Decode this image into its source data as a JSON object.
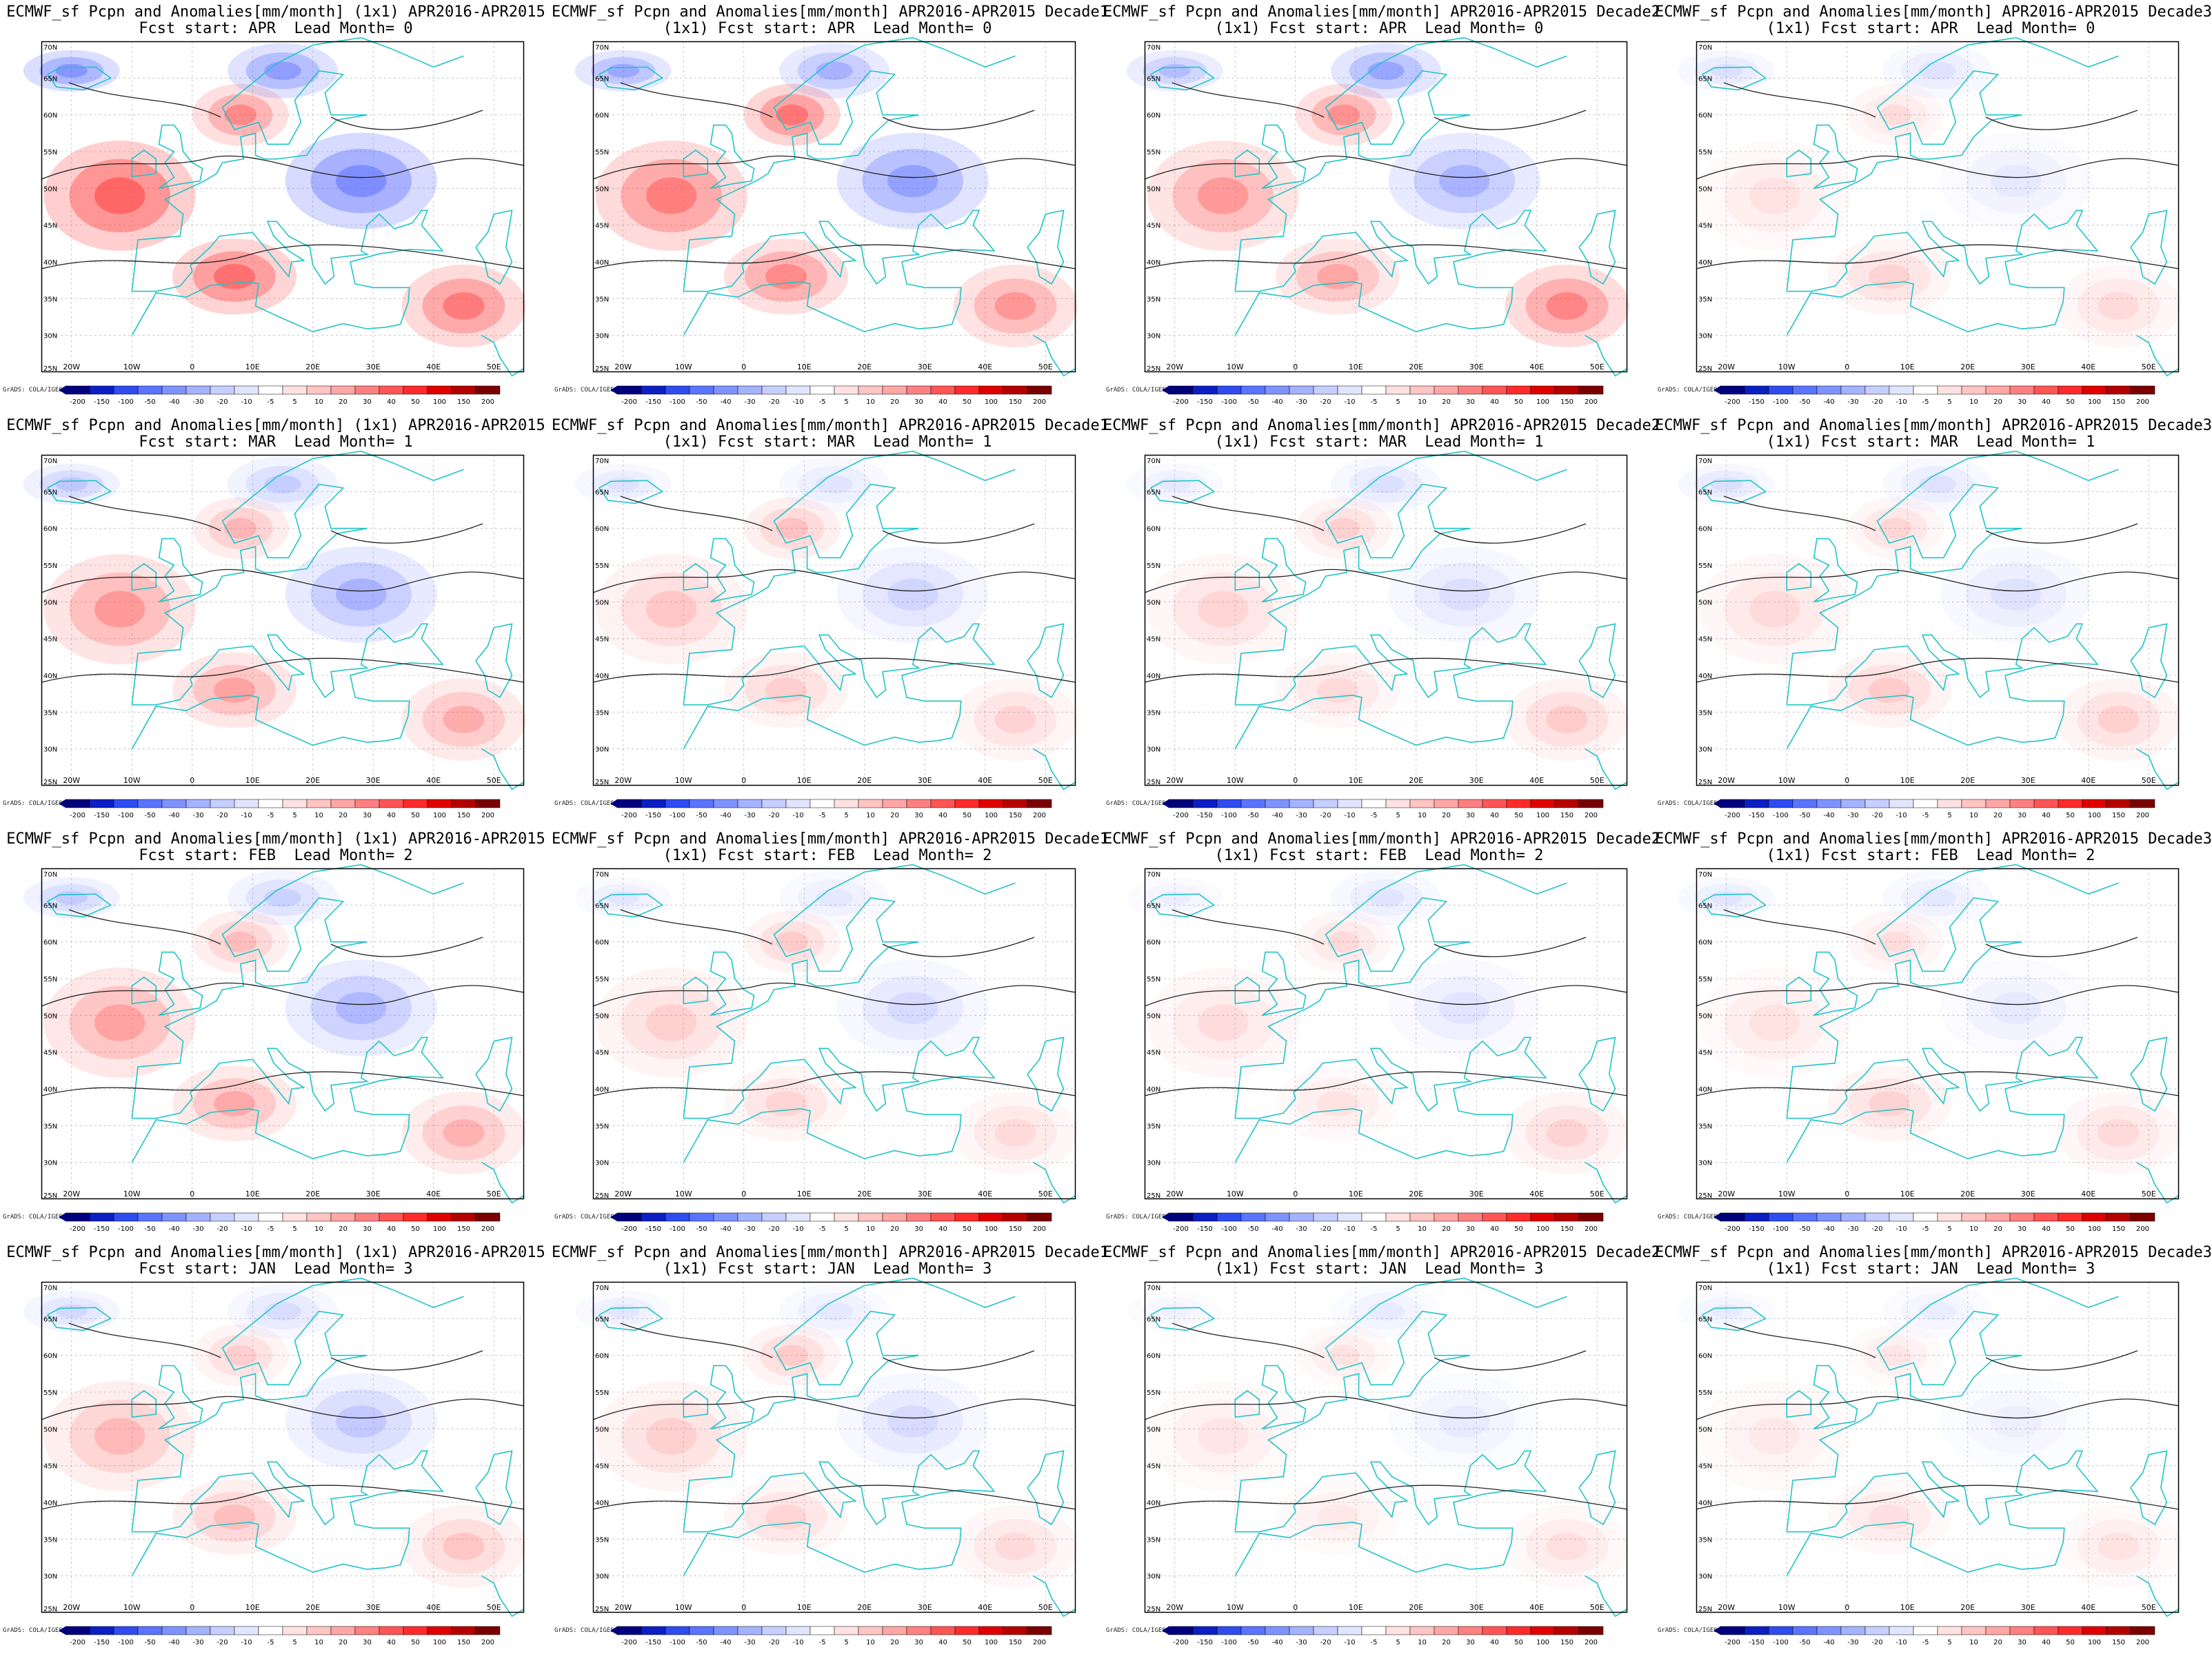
{
  "common": {
    "credit": "GrADS: COLA/IGES",
    "lon_labels": [
      "20W",
      "10W",
      "0",
      "10E",
      "20E",
      "30E",
      "40E",
      "50E"
    ],
    "lat_labels": [
      "70N",
      "65N",
      "60N",
      "55N",
      "50N",
      "45N",
      "40N",
      "35N",
      "30N",
      "25N"
    ],
    "colorbar_labels": [
      "-200",
      "-150",
      "-100",
      "-50",
      "-40",
      "-30",
      "-20",
      "-10",
      "-5",
      "5",
      "10",
      "20",
      "30",
      "40",
      "50",
      "100",
      "150",
      "200"
    ],
    "colorbar_colors": [
      "#00007e",
      "#0b1fc4",
      "#2e4cf0",
      "#5b74ff",
      "#7f93ff",
      "#a4b2ff",
      "#c6cfff",
      "#e1e6ff",
      "#ffffff",
      "#ffe1e1",
      "#ffc4c4",
      "#ffa6a6",
      "#ff8080",
      "#ff5555",
      "#ff2a2a",
      "#e00000",
      "#b40000",
      "#7a0000"
    ]
  },
  "panels": [
    {
      "title1": "ECMWF_sf Pcpn and Anomalies[mm/month] (1x1) APR2016-APR2015",
      "title2": "Fcst start: APR  Lead Month= 0",
      "intensity": 1.0
    },
    {
      "title1": "ECMWF_sf Pcpn and Anomalies[mm/month] APR2016-APR2015 Decade1",
      "title2": "(1x1) Fcst start: APR  Lead Month= 0",
      "intensity": 0.85
    },
    {
      "title1": "ECMWF_sf Pcpn and Anomalies[mm/month] APR2016-APR2015 Decade2",
      "title2": "(1x1) Fcst start: APR  Lead Month= 0",
      "intensity": 0.7
    },
    {
      "title1": "ECMWF_sf Pcpn and Anomalies[mm/month] APR2016-APR2015 Decade3",
      "title2": "(1x1) Fcst start: APR  Lead Month= 0",
      "intensity": 0.2
    },
    {
      "title1": "ECMWF_sf Pcpn and Anomalies[mm/month] (1x1) APR2016-APR2015",
      "title2": "Fcst start: MAR  Lead Month= 1",
      "intensity": 0.55
    },
    {
      "title1": "ECMWF_sf Pcpn and Anomalies[mm/month] APR2016-APR2015 Decade1",
      "title2": "(1x1) Fcst start: MAR  Lead Month= 1",
      "intensity": 0.3
    },
    {
      "title1": "ECMWF_sf Pcpn and Anomalies[mm/month] APR2016-APR2015 Decade2",
      "title2": "(1x1) Fcst start: MAR  Lead Month= 1",
      "intensity": 0.25
    },
    {
      "title1": "ECMWF_sf Pcpn and Anomalies[mm/month] APR2016-APR2015 Decade3",
      "title2": "(1x1) Fcst start: MAR  Lead Month= 1",
      "intensity": 0.25
    },
    {
      "title1": "ECMWF_sf Pcpn and Anomalies[mm/month] (1x1) APR2016-APR2015",
      "title2": "Fcst start: FEB  Lead Month= 2",
      "intensity": 0.5
    },
    {
      "title1": "ECMWF_sf Pcpn and Anomalies[mm/month] APR2016-APR2015 Decade1",
      "title2": "(1x1) Fcst start: FEB  Lead Month= 2",
      "intensity": 0.25
    },
    {
      "title1": "ECMWF_sf Pcpn and Anomalies[mm/month] APR2016-APR2015 Decade2",
      "title2": "(1x1) Fcst start: FEB  Lead Month= 2",
      "intensity": 0.2
    },
    {
      "title1": "ECMWF_sf Pcpn and Anomalies[mm/month] APR2016-APR2015 Decade3",
      "title2": "(1x1) Fcst start: FEB  Lead Month= 2",
      "intensity": 0.2
    },
    {
      "title1": "ECMWF_sf Pcpn and Anomalies[mm/month] (1x1) APR2016-APR2015",
      "title2": "Fcst start: JAN  Lead Month= 3",
      "intensity": 0.35
    },
    {
      "title1": "ECMWF_sf Pcpn and Anomalies[mm/month] APR2016-APR2015 Decade1",
      "title2": "(1x1) Fcst start: JAN  Lead Month= 3",
      "intensity": 0.25
    },
    {
      "title1": "ECMWF_sf Pcpn and Anomalies[mm/month] APR2016-APR2015 Decade2",
      "title2": "(1x1) Fcst start: JAN  Lead Month= 3",
      "intensity": 0.15
    },
    {
      "title1": "ECMWF_sf Pcpn and Anomalies[mm/month] APR2016-APR2015 Decade3",
      "title2": "(1x1) Fcst start: JAN  Lead Month= 3",
      "intensity": 0.15
    }
  ]
}
